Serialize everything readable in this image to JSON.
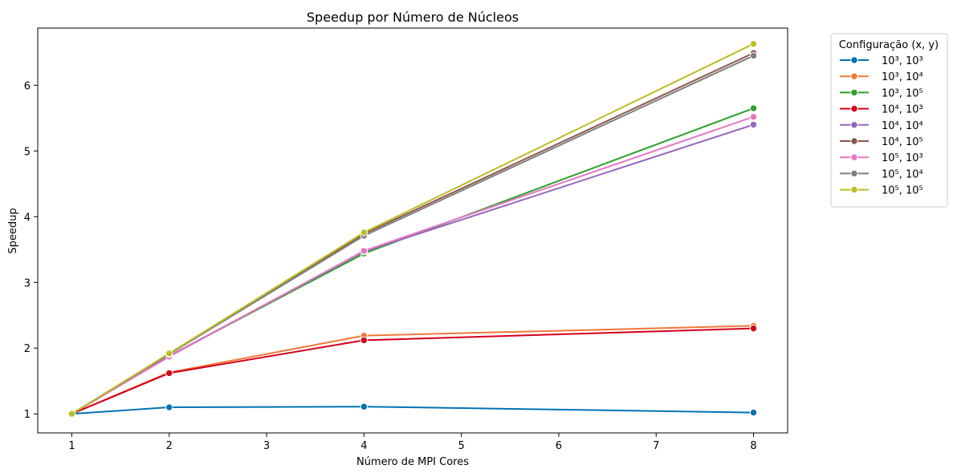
{
  "chart_data": {
    "type": "line",
    "title": "Speedup por Número de Núcleos",
    "xlabel": "Número de MPI Cores",
    "ylabel": "Speedup",
    "x": [
      1,
      2,
      4,
      8
    ],
    "xlim": [
      0.65,
      8.35
    ],
    "ylim": [
      0.71,
      6.87
    ],
    "xticks": [
      1,
      2,
      3,
      4,
      5,
      6,
      7,
      8
    ],
    "yticks": [
      1,
      2,
      3,
      4,
      5,
      6
    ],
    "grid": false,
    "legend": {
      "title": "Configuração (x, y)",
      "placement": "outside-right-top"
    },
    "series": [
      {
        "name": "10³, 10³",
        "color": "#0173b2",
        "values": [
          1.0,
          1.1,
          1.11,
          1.02
        ]
      },
      {
        "name": "10³, 10⁴",
        "color": "#f07837",
        "values": [
          1.0,
          1.63,
          2.19,
          2.34
        ]
      },
      {
        "name": "10³, 10⁵",
        "color": "#2ca02c",
        "values": [
          1.0,
          1.88,
          3.44,
          5.65
        ]
      },
      {
        "name": "10⁴, 10³",
        "color": "#d4001a",
        "values": [
          1.0,
          1.62,
          2.12,
          2.3
        ]
      },
      {
        "name": "10⁴, 10⁴",
        "color": "#9467bd",
        "values": [
          1.0,
          1.88,
          3.47,
          5.4
        ]
      },
      {
        "name": "10⁴, 10⁵",
        "color": "#8c564b",
        "values": [
          1.0,
          1.91,
          3.74,
          6.49
        ]
      },
      {
        "name": "10⁵, 10³",
        "color": "#e377c2",
        "values": [
          1.0,
          1.87,
          3.48,
          5.52
        ]
      },
      {
        "name": "10⁵, 10⁴",
        "color": "#7f7f7f",
        "values": [
          1.0,
          1.91,
          3.71,
          6.45
        ]
      },
      {
        "name": "10⁵, 10⁵",
        "color": "#bcbd22",
        "values": [
          1.0,
          1.92,
          3.76,
          6.63
        ]
      }
    ]
  }
}
